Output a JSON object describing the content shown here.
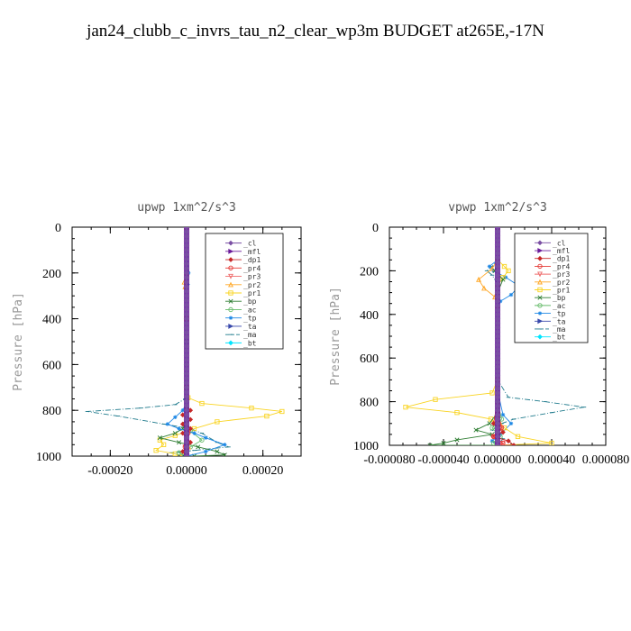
{
  "page": {
    "title": "jan24_clubb_c_invrs_tau_n2_clear_wp3m  BUDGET at265E,-17N"
  },
  "legend": {
    "placement": "top-right",
    "entries": [
      {
        "label": "_cl",
        "color": "#7a4fa3",
        "marker": "diamond"
      },
      {
        "label": "_mfl",
        "color": "#6a1b9a",
        "marker": "triangle-right"
      },
      {
        "label": "_dp1",
        "color": "#c62828",
        "marker": "diamond"
      },
      {
        "label": "_pr4",
        "color": "#e53935",
        "marker": "circle"
      },
      {
        "label": "_pr3",
        "color": "#ef6c6c",
        "marker": "triangle-down"
      },
      {
        "label": "_pr2",
        "color": "#ffa726",
        "marker": "triangle"
      },
      {
        "label": "_pr1",
        "color": "#f9d423",
        "marker": "square"
      },
      {
        "label": "_bp",
        "color": "#2e7d32",
        "marker": "x"
      },
      {
        "label": "_ac",
        "color": "#66bb6a",
        "marker": "circle"
      },
      {
        "label": "_tp",
        "color": "#1e88e5",
        "marker": "star"
      },
      {
        "label": "_ta",
        "color": "#3949ab",
        "marker": "triangle-right"
      },
      {
        "label": "_ma",
        "color": "#1f7a8c",
        "marker": "dash"
      },
      {
        "label": "_bt",
        "color": "#00e5ff",
        "marker": "diamond"
      }
    ]
  },
  "chart_data": [
    {
      "type": "line",
      "title": "upwp   1xm^2/s^3",
      "xlabel": "",
      "ylabel": "Pressure [hPa]",
      "xlim": [
        -0.0003,
        0.0003
      ],
      "ylim": [
        1000,
        0
      ],
      "y_inverted": true,
      "xticks": [
        -0.0002,
        0.0,
        0.0002
      ],
      "xtick_labels": [
        "-0.00020",
        "0.00000",
        "0.00020"
      ],
      "yticks": [
        0,
        200,
        400,
        600,
        800,
        1000
      ],
      "ytick_labels": [
        "0",
        "200",
        "400",
        "600",
        "800",
        "1000"
      ],
      "grid": false,
      "series": [
        {
          "name": "_ma",
          "x": [
            0,
            0,
            0,
            -4e-06,
            -3e-05,
            -0.00012,
            -0.00026,
            -0.00018,
            -6e-05,
            1e-05,
            4e-05,
            8e-05,
            0.00011,
            2e-05,
            -4e-05,
            -2e-05,
            1e-05
          ],
          "y": [
            0,
            400,
            700,
            750,
            775,
            790,
            805,
            825,
            860,
            880,
            900,
            940,
            960,
            975,
            985,
            995,
            1000
          ]
        },
        {
          "name": "_pr1",
          "x": [
            0,
            0,
            0,
            4e-06,
            4e-05,
            0.00017,
            0.00025,
            0.00021,
            8e-05,
            2e-05,
            -3e-05,
            -7e-05,
            -6e-05,
            -8e-05,
            -3e-05,
            -1e-05
          ],
          "y": [
            0,
            400,
            700,
            745,
            770,
            790,
            805,
            825,
            850,
            880,
            910,
            930,
            950,
            975,
            990,
            1000
          ]
        },
        {
          "name": "_bp",
          "x": [
            0,
            0,
            0,
            -4e-06,
            -1e-05,
            -3e-05,
            -7e-05,
            -2e-05,
            3e-05,
            8e-05,
            0.0001,
            2e-05
          ],
          "y": [
            0,
            500,
            800,
            860,
            880,
            900,
            920,
            940,
            960,
            980,
            995,
            1000
          ]
        },
        {
          "name": "_ac",
          "x": [
            0,
            0,
            0,
            1e-05,
            4e-05,
            1e-05,
            -2e-05,
            0.0
          ],
          "y": [
            0,
            600,
            850,
            890,
            930,
            960,
            985,
            1000
          ]
        },
        {
          "name": "_tp",
          "x": [
            0,
            5e-06,
            3e-06,
            0,
            0,
            2e-06,
            -1e-05,
            -3e-05,
            -5e-05,
            -2e-05,
            2e-05,
            5e-05,
            0.0001,
            5e-05,
            0.0
          ],
          "y": [
            0,
            200,
            250,
            400,
            700,
            760,
            800,
            830,
            860,
            880,
            900,
            920,
            950,
            980,
            1000
          ]
        },
        {
          "name": "_dp1",
          "x": [
            0,
            0,
            0,
            1e-05,
            -1e-05,
            1e-05,
            -1e-05,
            1e-05,
            -1e-05,
            1e-05,
            -1e-05,
            0.0
          ],
          "y": [
            0,
            500,
            790,
            800,
            820,
            840,
            860,
            880,
            900,
            940,
            980,
            1000
          ]
        },
        {
          "name": "_pr2",
          "x": [
            0,
            0,
            -6e-06,
            -4e-06,
            0,
            0,
            5e-06,
            0.0
          ],
          "y": [
            0,
            200,
            240,
            260,
            400,
            900,
            960,
            1000
          ]
        },
        {
          "name": "_pr3",
          "x": [
            0,
            0,
            4e-06,
            -4e-06,
            0.0
          ],
          "y": [
            0,
            800,
            900,
            960,
            1000
          ]
        },
        {
          "name": "_pr4",
          "x": [
            0,
            0,
            4e-06,
            -4e-06,
            0.0
          ],
          "y": [
            0,
            800,
            900,
            960,
            1000
          ]
        },
        {
          "name": "_mfl",
          "x": [
            0,
            0
          ],
          "y": [
            0,
            1000
          ]
        },
        {
          "name": "_cl",
          "x": [
            0,
            0
          ],
          "y": [
            0,
            1000
          ]
        },
        {
          "name": "_ta",
          "x": [
            0,
            0
          ],
          "y": [
            0,
            1000
          ]
        },
        {
          "name": "_bt",
          "x": [
            0,
            0
          ],
          "y": [
            0,
            1000
          ]
        }
      ]
    },
    {
      "type": "line",
      "title": "vpwp   1xm^2/s^3",
      "xlabel": "",
      "ylabel": "Pressure [hPa]",
      "xlim": [
        -8e-05,
        8e-05
      ],
      "ylim": [
        1000,
        0
      ],
      "y_inverted": true,
      "xticks": [
        -8e-05,
        -4e-05,
        0.0,
        4e-05,
        8e-05
      ],
      "xtick_labels": [
        "-0.000080",
        "-0.000040",
        "0.000000",
        "0.000040",
        "0.000080"
      ],
      "yticks": [
        0,
        200,
        400,
        600,
        800,
        1000
      ],
      "ytick_labels": [
        "0",
        "200",
        "400",
        "600",
        "800",
        "1000"
      ],
      "grid": false,
      "series": [
        {
          "name": "_ma",
          "x": [
            0,
            0,
            -4e-06,
            -8e-06,
            -4e-06,
            0,
            0,
            8e-06,
            3.5e-05,
            6.4e-05,
            4e-05,
            1.2e-05,
            3e-06,
            -4e-06,
            4e-06,
            0.0
          ],
          "y": [
            0,
            150,
            180,
            200,
            220,
            260,
            700,
            780,
            800,
            825,
            850,
            880,
            900,
            930,
            970,
            1000
          ]
        },
        {
          "name": "_tp",
          "x": [
            0,
            0,
            -6e-06,
            -3e-06,
            6e-06,
            1.6e-05,
            1e-05,
            2e-06,
            0,
            0,
            4e-06,
            1e-05,
            2e-06,
            -4e-06,
            0.0
          ],
          "y": [
            0,
            150,
            180,
            200,
            230,
            270,
            310,
            340,
            360,
            750,
            860,
            900,
            950,
            980,
            1000
          ]
        },
        {
          "name": "_pr1",
          "x": [
            0,
            0,
            5e-06,
            8e-06,
            4e-06,
            0,
            0,
            -4e-06,
            -4.6e-05,
            -6.8e-05,
            -3e-05,
            -5e-06,
            5e-06,
            1.5e-05,
            4e-05,
            0.0
          ],
          "y": [
            0,
            150,
            180,
            200,
            230,
            270,
            700,
            760,
            790,
            825,
            850,
            880,
            920,
            960,
            990,
            1000
          ]
        },
        {
          "name": "_pr2",
          "x": [
            0,
            0,
            -4e-06,
            -1.4e-05,
            -1e-05,
            -2e-06,
            0,
            0,
            2e-06,
            -2e-06,
            0.0
          ],
          "y": [
            0,
            150,
            190,
            240,
            280,
            320,
            360,
            800,
            900,
            960,
            1000
          ]
        },
        {
          "name": "_bp",
          "x": [
            0,
            0,
            -2e-06,
            4e-06,
            0,
            0,
            -6e-06,
            -1.6e-05,
            -4e-06,
            -3e-05,
            -4e-05,
            -5e-05,
            0.0
          ],
          "y": [
            0,
            150,
            200,
            240,
            300,
            850,
            900,
            930,
            950,
            975,
            990,
            1000,
            1000
          ]
        },
        {
          "name": "_ac",
          "x": [
            0,
            0,
            3e-06,
            -4e-06,
            2e-06,
            -3e-06,
            0.0
          ],
          "y": [
            0,
            800,
            880,
            920,
            960,
            990,
            1000
          ]
        },
        {
          "name": "_dp1",
          "x": [
            0,
            0,
            -3e-06,
            4e-06,
            -3e-06,
            8e-06,
            1.2e-05,
            0.0
          ],
          "y": [
            0,
            800,
            900,
            940,
            960,
            980,
            1000,
            1000
          ]
        },
        {
          "name": "_pr3",
          "x": [
            0,
            0,
            3e-06,
            -3e-06,
            4e-06,
            0.0
          ],
          "y": [
            0,
            850,
            920,
            960,
            990,
            1000
          ]
        },
        {
          "name": "_pr4",
          "x": [
            0,
            0,
            3e-06,
            -3e-06,
            4e-06,
            0.0
          ],
          "y": [
            0,
            850,
            920,
            960,
            990,
            1000
          ]
        },
        {
          "name": "_mfl",
          "x": [
            0,
            0
          ],
          "y": [
            0,
            1000
          ]
        },
        {
          "name": "_cl",
          "x": [
            0,
            0
          ],
          "y": [
            0,
            1000
          ]
        },
        {
          "name": "_ta",
          "x": [
            0,
            0
          ],
          "y": [
            0,
            1000
          ]
        },
        {
          "name": "_bt",
          "x": [
            0,
            0
          ],
          "y": [
            0,
            1000
          ]
        }
      ]
    }
  ]
}
